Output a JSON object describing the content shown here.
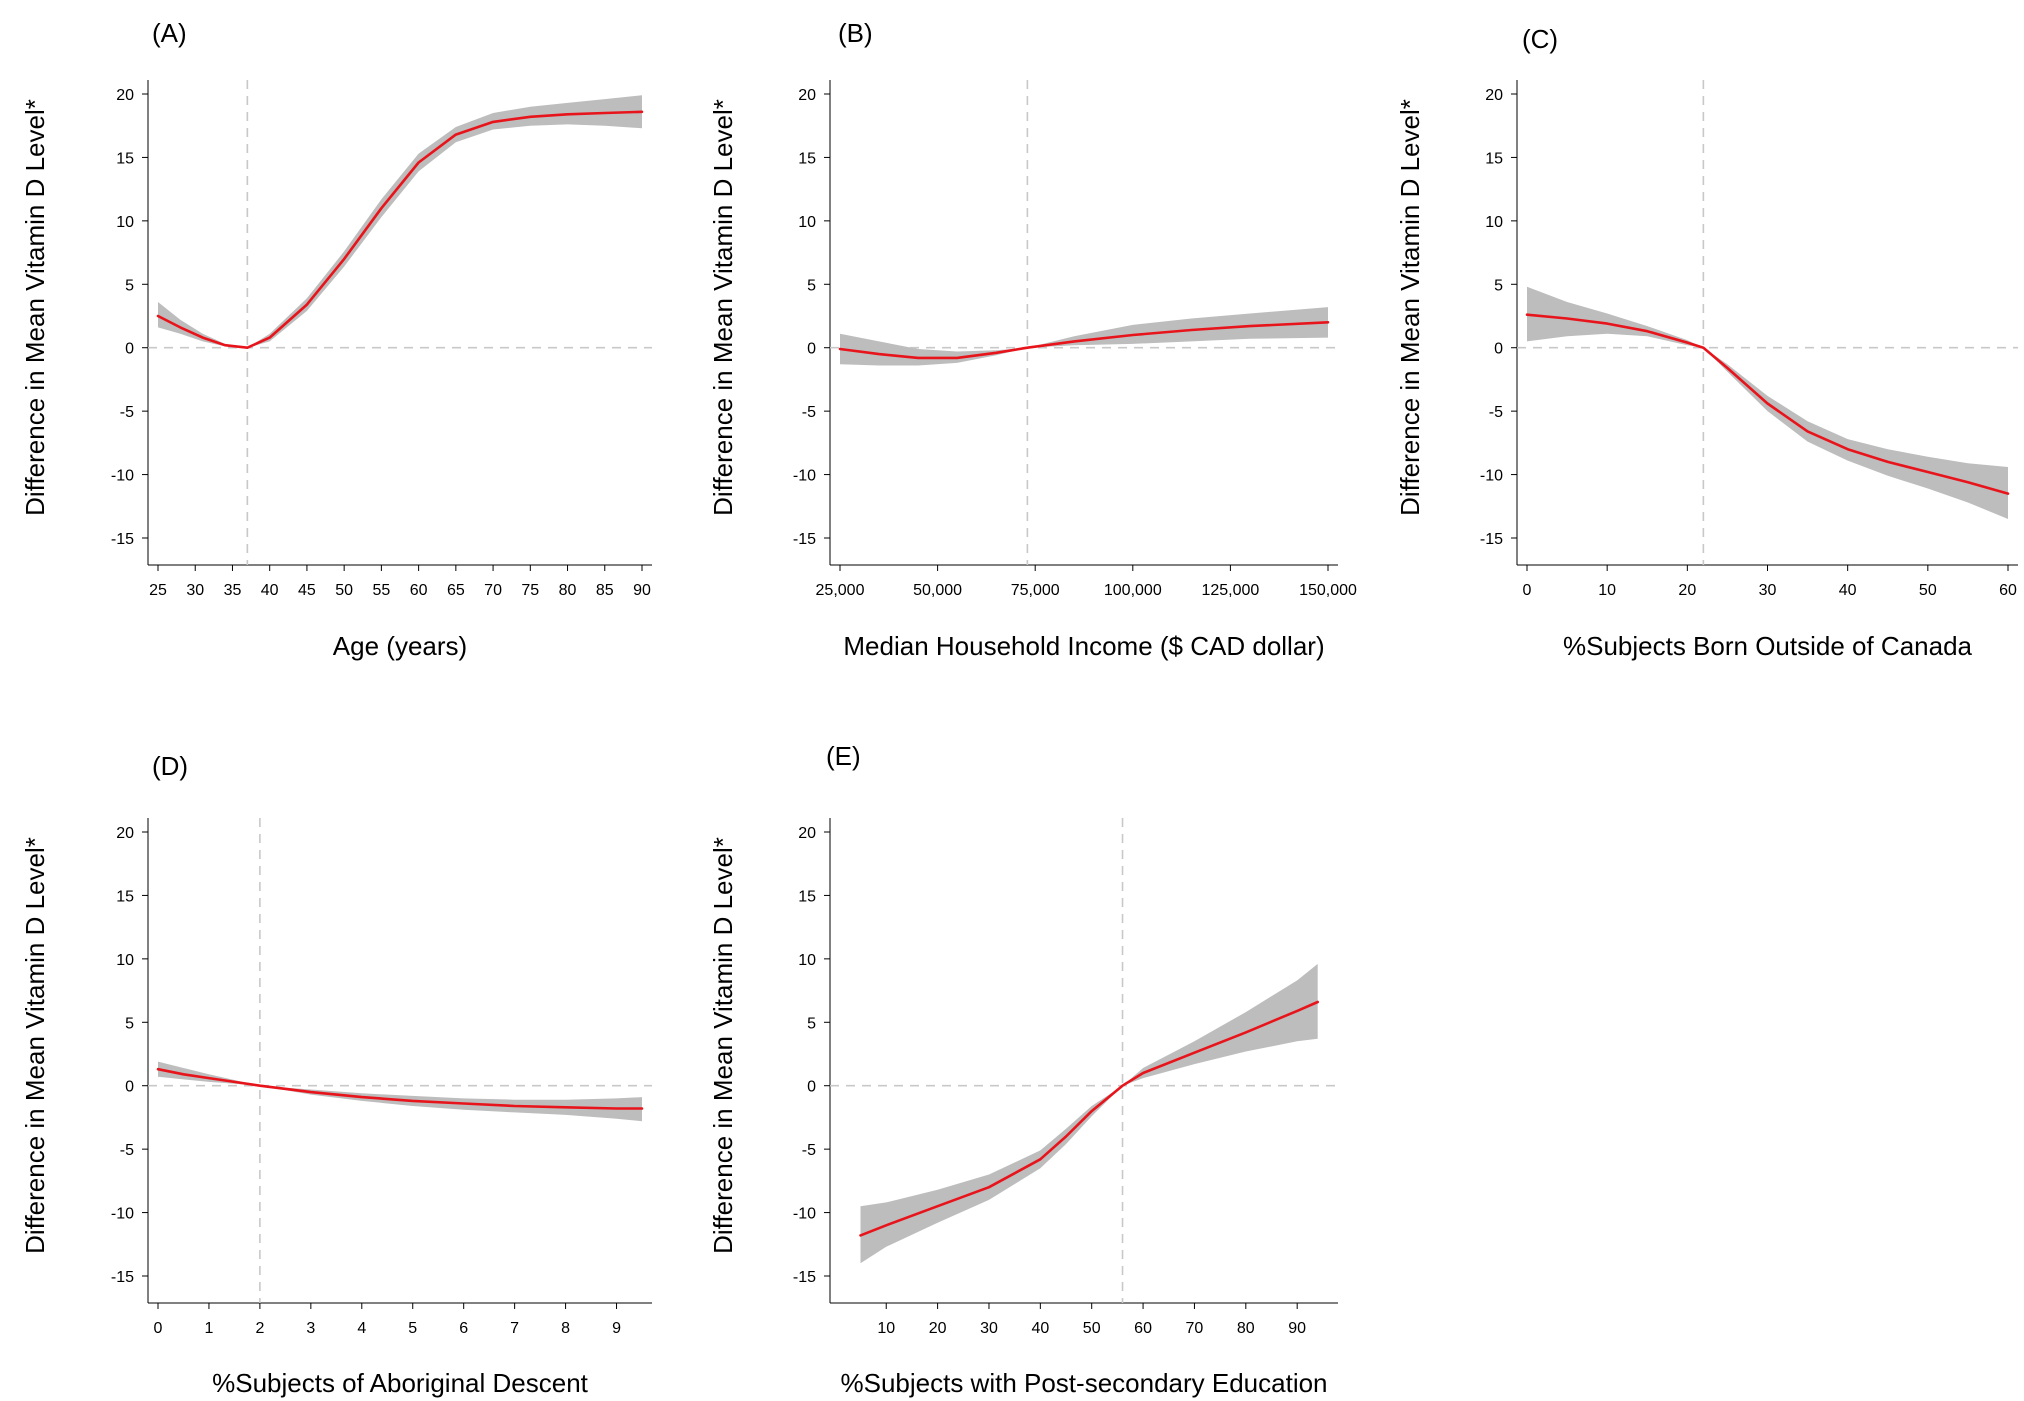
{
  "chart_data": [
    {
      "type": "line",
      "panel_label": "(A)",
      "xlabel": "Age (years)",
      "ylabel": "Difference in Mean Vitamin D Level*",
      "xlim": [
        25,
        90
      ],
      "ylim": [
        -15,
        20
      ],
      "xticks": [
        25,
        30,
        35,
        40,
        45,
        50,
        55,
        60,
        65,
        70,
        75,
        80,
        85,
        90
      ],
      "xtick_labels": [
        "25",
        "30",
        "35",
        "40",
        "45",
        "50",
        "55",
        "60",
        "65",
        "70",
        "75",
        "80",
        "85",
        "90"
      ],
      "yticks": [
        -15,
        -10,
        -5,
        0,
        5,
        10,
        15,
        20
      ],
      "ytick_labels": [
        "-15",
        "-10",
        "-5",
        "0",
        "5",
        "10",
        "15",
        "20"
      ],
      "reference_x": 37,
      "reference_y": 0,
      "x": [
        25,
        28,
        31,
        34,
        37,
        40,
        45,
        50,
        55,
        60,
        65,
        70,
        75,
        80,
        85,
        90
      ],
      "y": [
        2.5,
        1.6,
        0.8,
        0.2,
        0.0,
        0.8,
        3.4,
        7.0,
        11.0,
        14.6,
        16.8,
        17.8,
        18.2,
        18.4,
        18.5,
        18.6
      ],
      "ci_lower": [
        1.6,
        1.1,
        0.5,
        0.1,
        0.0,
        0.5,
        2.9,
        6.4,
        10.3,
        13.9,
        16.2,
        17.2,
        17.5,
        17.6,
        17.5,
        17.3
      ],
      "ci_upper": [
        3.6,
        2.2,
        1.1,
        0.3,
        0.0,
        1.1,
        3.9,
        7.6,
        11.7,
        15.3,
        17.4,
        18.5,
        19.0,
        19.3,
        19.6,
        19.9
      ],
      "line_color": "#e8141b",
      "band_color": "#bdbdbd"
    },
    {
      "type": "line",
      "panel_label": "(B)",
      "xlabel": "Median Household Income ($ CAD dollar)",
      "ylabel": "Difference in Mean Vitamin D Level*",
      "xlim": [
        25000,
        150000
      ],
      "ylim": [
        -15,
        20
      ],
      "xticks": [
        25000,
        50000,
        75000,
        100000,
        125000,
        150000
      ],
      "xtick_labels": [
        "25,000",
        "50,000",
        "75,000",
        "100,000",
        "125,000",
        "150,000"
      ],
      "yticks": [
        -15,
        -10,
        -5,
        0,
        5,
        10,
        15,
        20
      ],
      "ytick_labels": [
        "-15",
        "-10",
        "-5",
        "0",
        "5",
        "10",
        "15",
        "20"
      ],
      "reference_x": 73000,
      "reference_y": 0,
      "x": [
        25000,
        35000,
        45000,
        55000,
        65000,
        73000,
        85000,
        100000,
        115000,
        130000,
        150000
      ],
      "y": [
        -0.1,
        -0.5,
        -0.8,
        -0.8,
        -0.4,
        0.0,
        0.5,
        1.0,
        1.4,
        1.7,
        2.0
      ],
      "ci_lower": [
        -1.3,
        -1.4,
        -1.4,
        -1.2,
        -0.6,
        0.0,
        0.2,
        0.3,
        0.5,
        0.7,
        0.8
      ],
      "ci_upper": [
        1.1,
        0.5,
        -0.1,
        -0.3,
        -0.2,
        0.0,
        0.9,
        1.8,
        2.3,
        2.7,
        3.2
      ],
      "line_color": "#e8141b",
      "band_color": "#bdbdbd"
    },
    {
      "type": "line",
      "panel_label": "(C)",
      "xlabel": "%Subjects Born Outside of Canada",
      "ylabel": "Difference in Mean Vitamin D Level*",
      "xlim": [
        0,
        60
      ],
      "ylim": [
        -15,
        20
      ],
      "xticks": [
        0,
        10,
        20,
        30,
        40,
        50,
        60
      ],
      "xtick_labels": [
        "0",
        "10",
        "20",
        "30",
        "40",
        "50",
        "60"
      ],
      "yticks": [
        -15,
        -10,
        -5,
        0,
        5,
        10,
        15,
        20
      ],
      "ytick_labels": [
        "-15",
        "-10",
        "-5",
        "0",
        "5",
        "10",
        "15",
        "20"
      ],
      "reference_x": 22,
      "reference_y": 0,
      "x": [
        0,
        5,
        10,
        15,
        20,
        22,
        25,
        30,
        35,
        40,
        45,
        50,
        55,
        60
      ],
      "y": [
        2.6,
        2.3,
        1.9,
        1.3,
        0.4,
        0.0,
        -1.6,
        -4.4,
        -6.6,
        -8.0,
        -9.0,
        -9.8,
        -10.6,
        -11.5
      ],
      "ci_lower": [
        0.5,
        0.9,
        1.1,
        0.9,
        0.2,
        0.0,
        -1.9,
        -5.0,
        -7.4,
        -8.9,
        -10.1,
        -11.1,
        -12.2,
        -13.5
      ],
      "ci_upper": [
        4.8,
        3.6,
        2.7,
        1.7,
        0.6,
        0.0,
        -1.3,
        -3.8,
        -5.8,
        -7.2,
        -8.0,
        -8.6,
        -9.1,
        -9.4
      ],
      "line_color": "#e8141b",
      "band_color": "#bdbdbd"
    },
    {
      "type": "line",
      "panel_label": "(D)",
      "xlabel": "%Subjects of Aboriginal Descent",
      "ylabel": "Difference in Mean Vitamin D Level*",
      "xlim": [
        0,
        9.5
      ],
      "ylim": [
        -15,
        20
      ],
      "xticks": [
        0,
        1,
        2,
        3,
        4,
        5,
        6,
        7,
        8,
        9
      ],
      "xtick_labels": [
        "0",
        "1",
        "2",
        "3",
        "4",
        "5",
        "6",
        "7",
        "8",
        "9"
      ],
      "yticks": [
        -15,
        -10,
        -5,
        0,
        5,
        10,
        15,
        20
      ],
      "ytick_labels": [
        "-15",
        "-10",
        "-5",
        "0",
        "5",
        "10",
        "15",
        "20"
      ],
      "reference_x": 2,
      "reference_y": 0,
      "x": [
        0,
        0.5,
        1,
        1.5,
        2,
        3,
        4,
        5,
        6,
        7,
        8,
        9,
        9.5
      ],
      "y": [
        1.3,
        0.9,
        0.6,
        0.3,
        0.0,
        -0.5,
        -0.9,
        -1.2,
        -1.4,
        -1.6,
        -1.7,
        -1.8,
        -1.8
      ],
      "ci_lower": [
        0.7,
        0.5,
        0.3,
        0.15,
        0.0,
        -0.7,
        -1.2,
        -1.6,
        -1.9,
        -2.1,
        -2.3,
        -2.6,
        -2.8
      ],
      "ci_upper": [
        1.9,
        1.4,
        0.9,
        0.45,
        0.0,
        -0.3,
        -0.6,
        -0.8,
        -1.0,
        -1.1,
        -1.1,
        -1.0,
        -0.9
      ],
      "line_color": "#e8141b",
      "band_color": "#bdbdbd"
    },
    {
      "type": "line",
      "panel_label": "(E)",
      "xlabel": "%Subjects with Post-secondary Education",
      "ylabel": "Difference in Mean Vitamin D Level*",
      "xlim": [
        1,
        96
      ],
      "ylim": [
        -15,
        20
      ],
      "xticks": [
        10,
        20,
        30,
        40,
        50,
        60,
        70,
        80,
        90
      ],
      "xtick_labels": [
        "10",
        "20",
        "30",
        "40",
        "50",
        "60",
        "70",
        "80",
        "90"
      ],
      "yticks": [
        -15,
        -10,
        -5,
        0,
        5,
        10,
        15,
        20
      ],
      "ytick_labels": [
        "-15",
        "-10",
        "-5",
        "0",
        "5",
        "10",
        "15",
        "20"
      ],
      "reference_x": 56,
      "reference_y": 0,
      "x": [
        5,
        10,
        20,
        30,
        40,
        45,
        50,
        56,
        60,
        70,
        80,
        90,
        94
      ],
      "y": [
        -11.8,
        -11.0,
        -9.5,
        -8.0,
        -5.8,
        -4.0,
        -2.0,
        0.0,
        1.0,
        2.6,
        4.2,
        5.9,
        6.6
      ],
      "ci_lower": [
        -14.0,
        -12.7,
        -10.8,
        -9.0,
        -6.5,
        -4.6,
        -2.4,
        0.0,
        0.6,
        1.7,
        2.7,
        3.5,
        3.7
      ],
      "ci_upper": [
        -9.5,
        -9.2,
        -8.2,
        -7.0,
        -5.1,
        -3.4,
        -1.6,
        0.0,
        1.4,
        3.5,
        5.8,
        8.3,
        9.6
      ],
      "line_color": "#e8141b",
      "band_color": "#bdbdbd"
    }
  ]
}
